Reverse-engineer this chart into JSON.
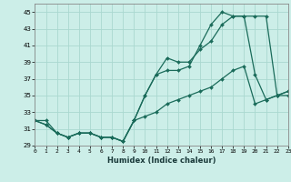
{
  "xlabel": "Humidex (Indice chaleur)",
  "bg_color": "#cceee8",
  "grid_color": "#aad8d0",
  "line_color": "#1a6b5a",
  "xlim": [
    0,
    23
  ],
  "ylim": [
    29,
    46
  ],
  "xticks": [
    0,
    1,
    2,
    3,
    4,
    5,
    6,
    7,
    8,
    9,
    10,
    11,
    12,
    13,
    14,
    15,
    16,
    17,
    18,
    19,
    20,
    21,
    22,
    23
  ],
  "yticks": [
    29,
    31,
    33,
    35,
    37,
    39,
    41,
    43,
    45
  ],
  "line1_x": [
    0,
    1,
    2,
    3,
    4,
    5,
    6,
    7,
    8,
    9,
    10,
    11,
    12,
    13,
    14,
    15,
    16,
    17,
    18,
    19,
    20,
    21,
    22,
    23
  ],
  "line1_y": [
    32,
    32,
    30.5,
    30,
    30.5,
    30.5,
    30,
    30,
    29.5,
    32,
    32.5,
    33,
    34,
    34.5,
    35,
    35.5,
    36,
    37,
    38,
    38.5,
    34,
    34.5,
    35,
    35.5
  ],
  "line2_x": [
    0,
    1,
    2,
    3,
    4,
    5,
    6,
    7,
    8,
    9,
    10,
    11,
    12,
    13,
    14,
    15,
    16,
    17,
    18,
    19,
    20,
    21,
    22,
    23
  ],
  "line2_y": [
    32,
    31.5,
    30.5,
    30,
    30.5,
    30.5,
    30,
    30,
    29.5,
    32,
    35,
    37.5,
    39.5,
    39,
    39,
    40.5,
    41.5,
    43.5,
    44.5,
    44.5,
    37.5,
    34.5,
    35,
    35
  ],
  "line3_x": [
    0,
    1,
    2,
    3,
    4,
    5,
    6,
    7,
    8,
    9,
    10,
    11,
    12,
    13,
    14,
    15,
    16,
    17,
    18,
    19,
    20,
    21,
    22,
    23
  ],
  "line3_y": [
    32,
    31.5,
    30.5,
    30,
    30.5,
    30.5,
    30,
    30,
    29.5,
    32,
    35,
    37.5,
    38,
    38,
    38.5,
    41,
    43.5,
    45,
    44.5,
    44.5,
    44.5,
    44.5,
    35,
    35.5
  ]
}
